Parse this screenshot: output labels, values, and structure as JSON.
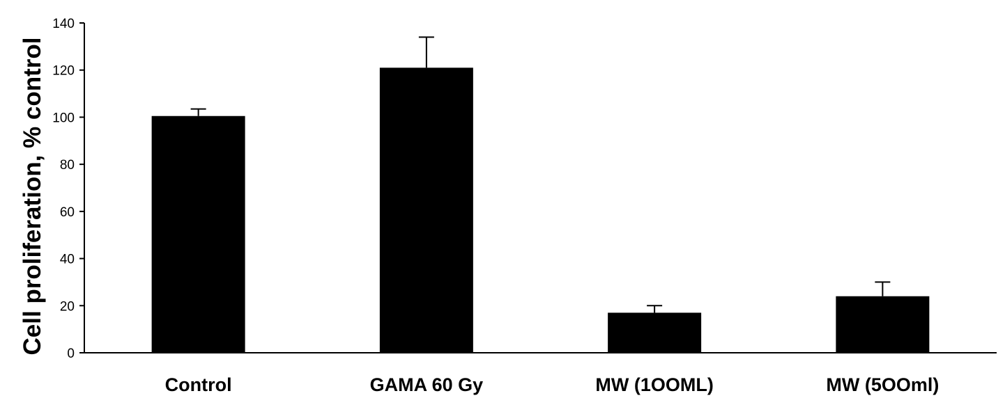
{
  "chart_data": {
    "type": "bar",
    "title": "",
    "xlabel": "",
    "ylabel": "Cell proliferation, % control",
    "categories": [
      "Control",
      "GAMA 60 Gy",
      "MW (1OOML)",
      "MW (5OOml)"
    ],
    "values": [
      100.5,
      121,
      17,
      24
    ],
    "errors": [
      3,
      13,
      3,
      6
    ],
    "ylim": [
      0,
      140
    ],
    "yticks": [
      "0",
      "20",
      "40",
      "60",
      "80",
      "100",
      "120",
      "140"
    ],
    "grid": false,
    "legend": "none",
    "bar_color": "#000000"
  }
}
